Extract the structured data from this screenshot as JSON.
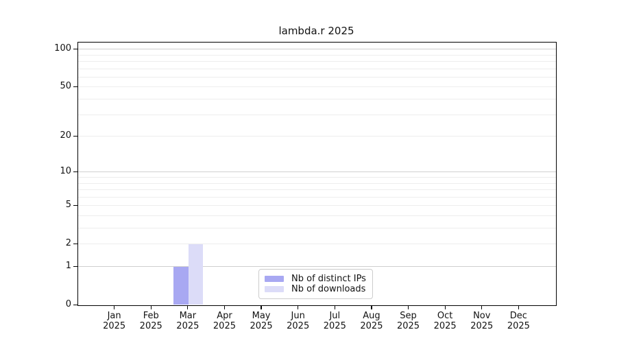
{
  "chart_data": {
    "type": "bar",
    "title": "lambda.r 2025",
    "categories": [
      "Jan",
      "Feb",
      "Mar",
      "Apr",
      "May",
      "Jun",
      "Jul",
      "Aug",
      "Sep",
      "Oct",
      "Nov",
      "Dec"
    ],
    "year_label": "2025",
    "series": [
      {
        "name": "Nb of distinct IPs",
        "color": "#a8a8f2",
        "values": [
          0,
          0,
          1,
          0,
          0,
          0,
          0,
          0,
          0,
          0,
          0,
          0
        ]
      },
      {
        "name": "Nb of downloads",
        "color": "#dcdcf8",
        "values": [
          0,
          0,
          2,
          0,
          0,
          0,
          0,
          0,
          0,
          0,
          0,
          0
        ]
      }
    ],
    "xlabel": "",
    "ylabel": "",
    "y_axis": {
      "scale": "log1p",
      "tick_values": [
        0,
        1,
        2,
        5,
        10,
        20,
        50,
        100
      ],
      "top_value": 113,
      "major_gridlines": [
        1,
        10,
        100
      ],
      "minor_gridlines": [
        2,
        3,
        4,
        5,
        6,
        7,
        8,
        9,
        20,
        30,
        40,
        50,
        60,
        70,
        80,
        90
      ]
    },
    "grid": "on",
    "legend": {
      "position": "inside-bottom-center",
      "entries": [
        "Nb of distinct IPs",
        "Nb of downloads"
      ]
    }
  }
}
